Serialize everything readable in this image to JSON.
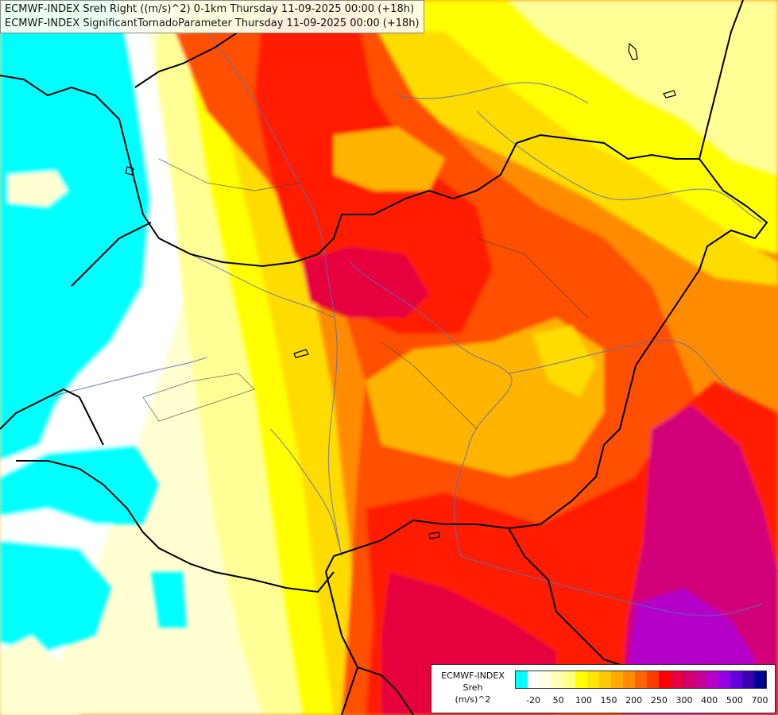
{
  "header": {
    "line1": "ECMWF-INDEX Sreh Right ((m/s)^2) 0-1km Thursday 11-09-2025 00:00 (+18h)",
    "line2": "ECMWF-INDEX SignificantTornadoParameter Thursday 11-09-2025 00:00 (+18h)"
  },
  "legend": {
    "title_line1": "ECMWF-INDEX",
    "title_line2": "Sreh",
    "title_line3": "(m/s)^2",
    "colors": [
      "#00ffff",
      "#ffffff",
      "#ffffe6",
      "#ffffb4",
      "#ffff82",
      "#ffff00",
      "#ffe600",
      "#ffc800",
      "#ffaa00",
      "#ff8c00",
      "#ff6400",
      "#ff3c00",
      "#ff0000",
      "#e6003c",
      "#d20064",
      "#c80096",
      "#b400c8",
      "#9600e6",
      "#6400dc",
      "#3c00b4",
      "#000096"
    ],
    "tick_labels": [
      "-20",
      "50",
      "100",
      "150",
      "200",
      "250",
      "300",
      "400",
      "500",
      "700"
    ]
  },
  "map": {
    "colors": {
      "cyan": "#00ffff",
      "white": "#ffffff",
      "cream": "#ffffd2",
      "pale_yellow": "#ffff96",
      "yellow": "#ffff00",
      "gold": "#ffdc00",
      "orange": "#ffb400",
      "dark_orange": "#ff8c00",
      "red_orange": "#ff5000",
      "red": "#ff1e00",
      "crimson": "#e6003c",
      "magenta": "#d20078",
      "purple": "#b400c8",
      "border": "#000000",
      "river": "#5a6eb4"
    }
  }
}
